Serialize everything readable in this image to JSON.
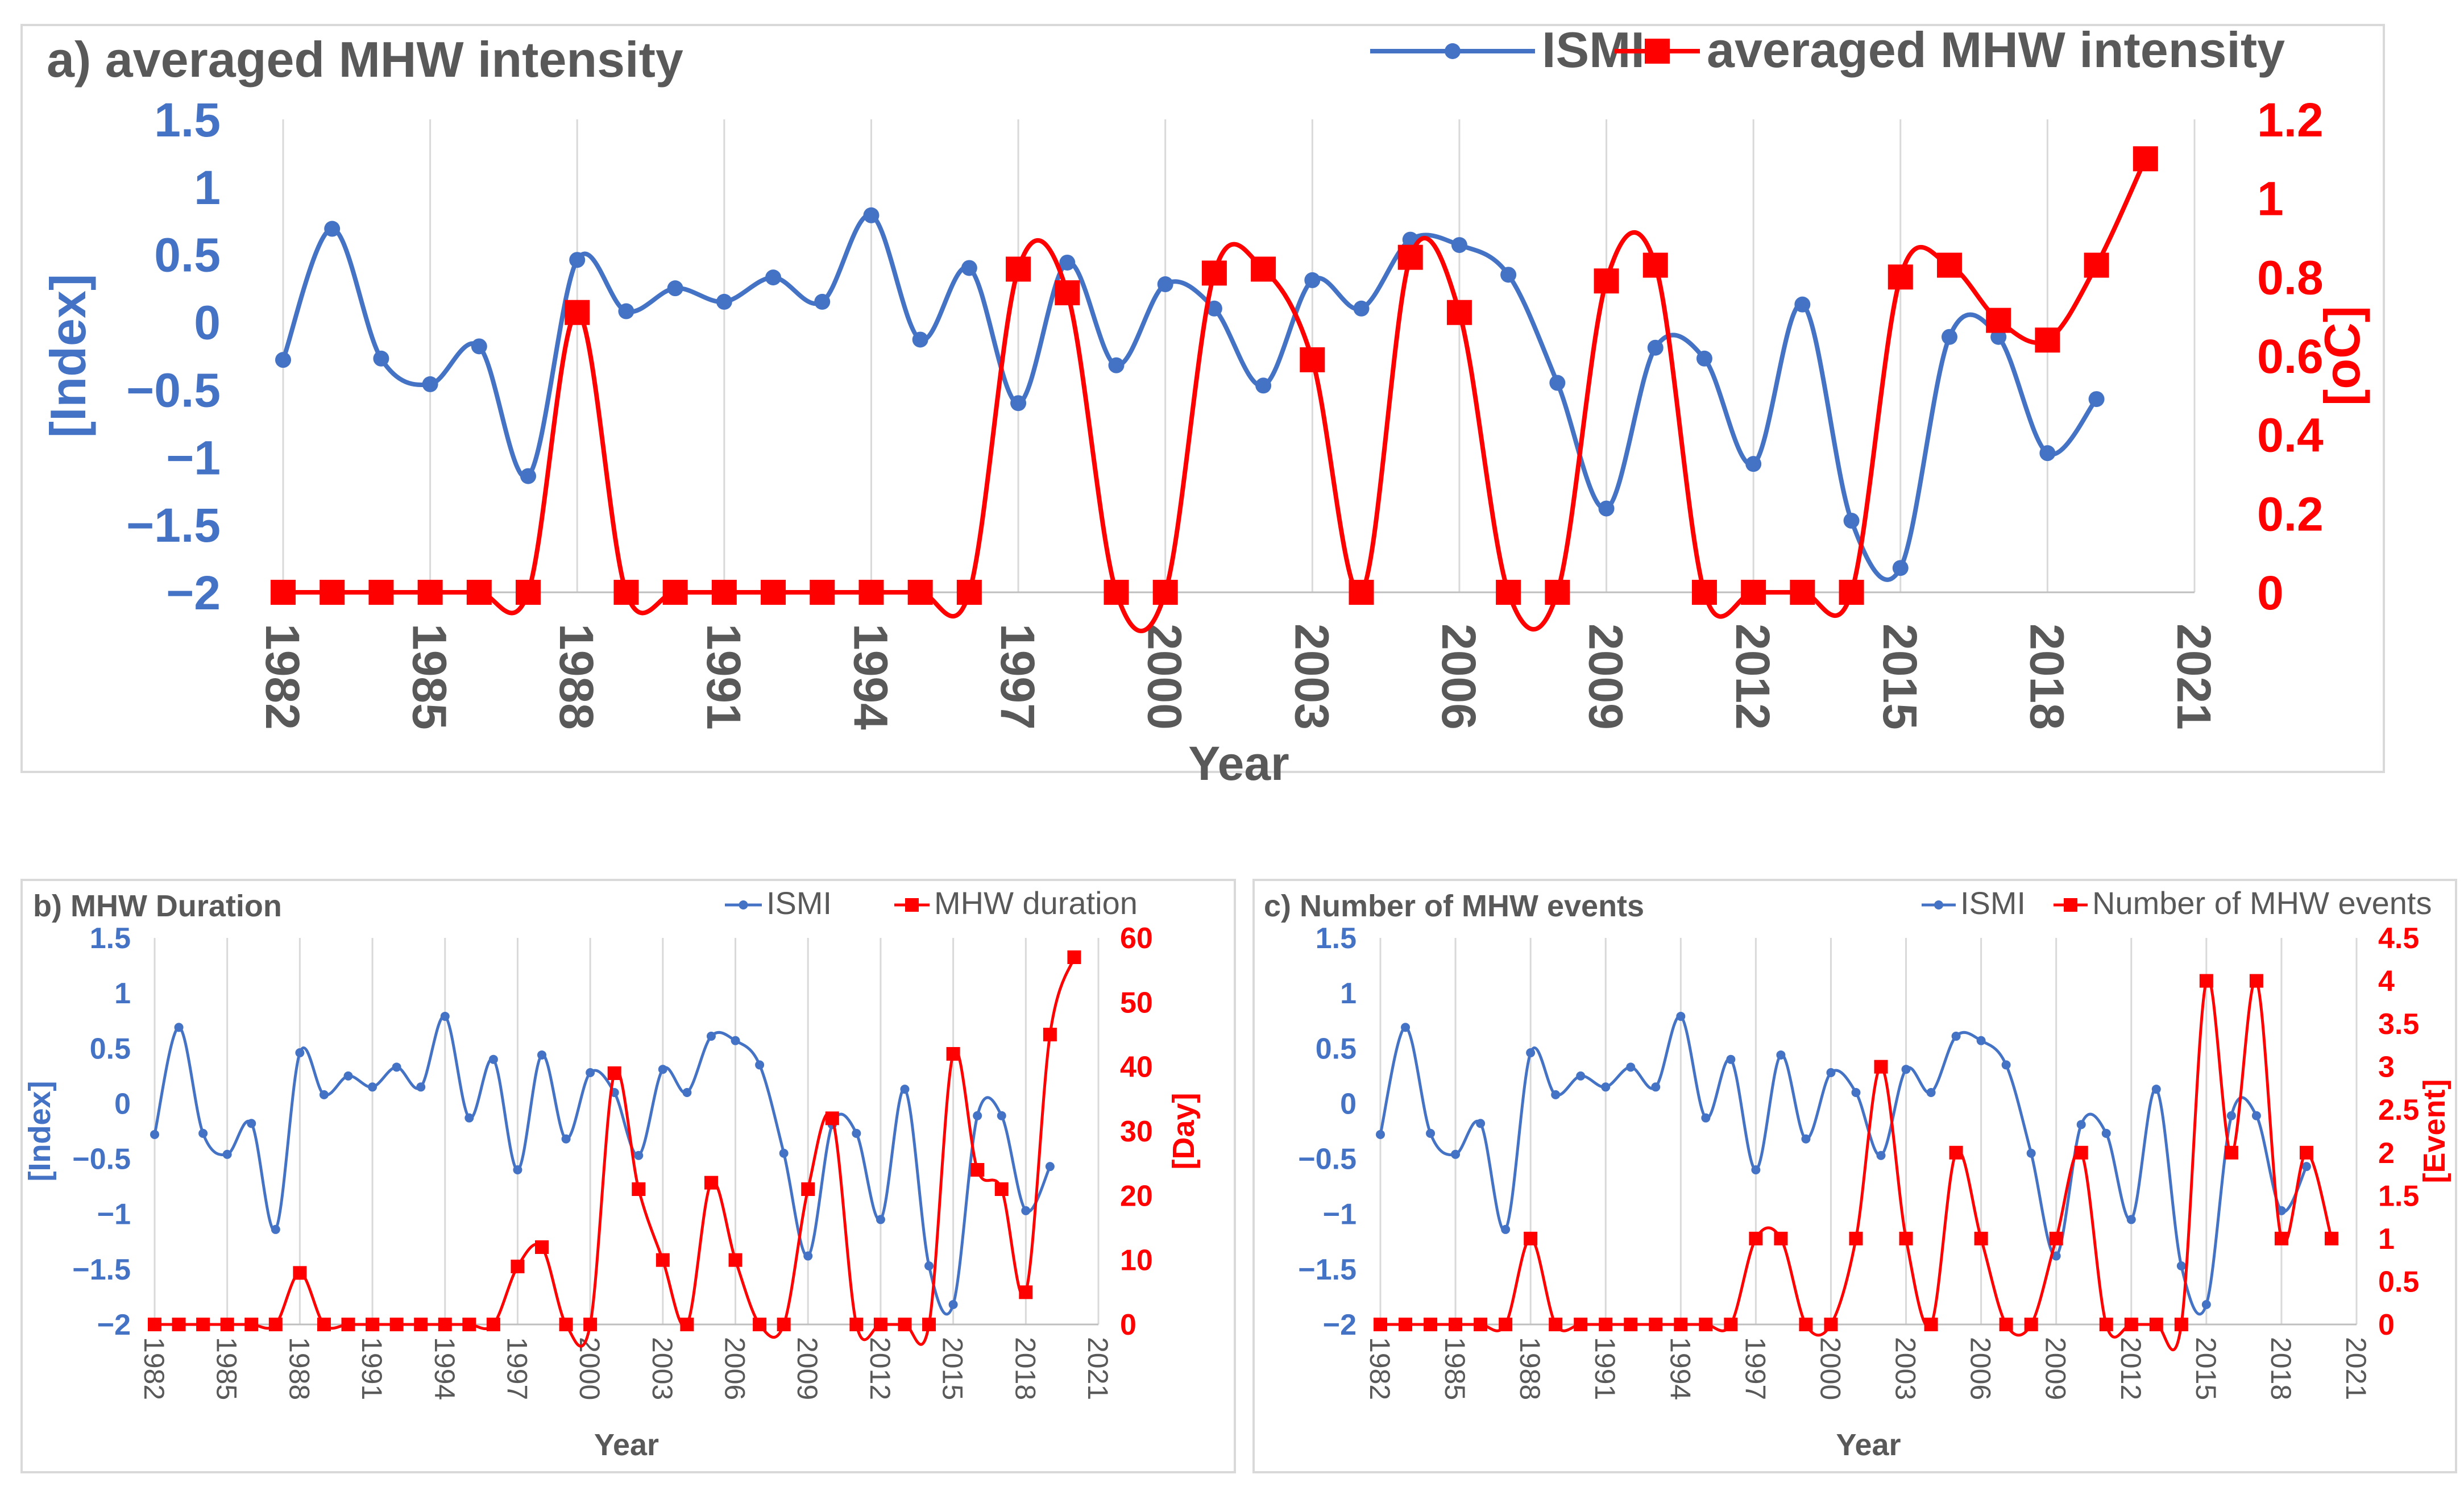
{
  "chart_data": [
    {
      "panel": "a",
      "type": "line",
      "title": "a) averaged MHW intensity",
      "xlabel": "Year",
      "ylabel_left": "[Index]",
      "ylabel_right": "[oC]",
      "x_ticks": [
        "1982",
        "1985",
        "1988",
        "1991",
        "1994",
        "1997",
        "2000",
        "2003",
        "2006",
        "2009",
        "2012",
        "2015",
        "2018",
        "2021"
      ],
      "xlim": [
        1982,
        2021
      ],
      "ylim_left": [
        -2,
        1.5
      ],
      "yticks_left": [
        "-2",
        "-1.5",
        "-1",
        "-0.5",
        "0",
        "0.5",
        "1",
        "1.5"
      ],
      "ylim_right": [
        0,
        1.2
      ],
      "yticks_right": [
        "0",
        "0.2",
        "0.4",
        "0.6",
        "0.8",
        "1",
        "1.2"
      ],
      "series": [
        {
          "name": "ISMI",
          "axis": "left",
          "color": "#4472c4",
          "x": [
            1982,
            1983,
            1984,
            1985,
            1986,
            1987,
            1988,
            1989,
            1990,
            1991,
            1992,
            1993,
            1994,
            1995,
            1996,
            1997,
            1998,
            1999,
            2000,
            2001,
            2002,
            2003,
            2004,
            2005,
            2006,
            2007,
            2008,
            2009,
            2010,
            2011,
            2012,
            2013,
            2014,
            2015,
            2016,
            2017,
            2018,
            2019
          ],
          "values": [
            -0.28,
            0.69,
            -0.27,
            -0.46,
            -0.18,
            -1.14,
            0.46,
            0.08,
            0.25,
            0.15,
            0.33,
            0.15,
            0.79,
            -0.13,
            0.4,
            -0.6,
            0.44,
            -0.32,
            0.28,
            0.1,
            -0.47,
            0.31,
            0.1,
            0.61,
            0.57,
            0.35,
            -0.45,
            -1.38,
            -0.19,
            -0.27,
            -1.05,
            0.13,
            -1.47,
            -1.82,
            -0.11,
            -0.11,
            -0.97,
            -0.57
          ]
        },
        {
          "name": "averaged MHW intensity",
          "axis": "right",
          "color": "#ff0000",
          "x": [
            1982,
            1983,
            1984,
            1985,
            1986,
            1987,
            1988,
            1989,
            1990,
            1991,
            1992,
            1993,
            1994,
            1995,
            1996,
            1997,
            1998,
            1999,
            2000,
            2001,
            2002,
            2003,
            2004,
            2005,
            2006,
            2007,
            2008,
            2009,
            2010,
            2011,
            2012,
            2013,
            2014,
            2015,
            2016,
            2017,
            2018,
            2019,
            2020
          ],
          "values": [
            0,
            0,
            0,
            0,
            0,
            0,
            0.71,
            0,
            0,
            0,
            0,
            0,
            0,
            0,
            0,
            0.82,
            0.76,
            0,
            0,
            0.81,
            0.82,
            0.59,
            0,
            0.85,
            0.71,
            0,
            0,
            0.79,
            0.83,
            0,
            0,
            0,
            0,
            0.8,
            0.83,
            0.69,
            0.64,
            0.83,
            1.1
          ]
        }
      ]
    },
    {
      "panel": "b",
      "type": "line",
      "title": "b) MHW Duration",
      "xlabel": "Year",
      "ylabel_left": "[Index]",
      "ylabel_right": "[Day]",
      "x_ticks": [
        "1982",
        "1985",
        "1988",
        "1991",
        "1994",
        "1997",
        "2000",
        "2003",
        "2006",
        "2009",
        "2012",
        "2015",
        "2018",
        "2021"
      ],
      "xlim": [
        1982,
        2021
      ],
      "ylim_left": [
        -2,
        1.5
      ],
      "yticks_left": [
        "-2",
        "-1.5",
        "-1",
        "-0.5",
        "0",
        "0.5",
        "1",
        "1.5"
      ],
      "ylim_right": [
        0,
        60
      ],
      "yticks_right": [
        "0",
        "10",
        "20",
        "30",
        "40",
        "50",
        "60"
      ],
      "series": [
        {
          "name": "ISMI",
          "axis": "left",
          "color": "#4472c4",
          "x": [
            1982,
            1983,
            1984,
            1985,
            1986,
            1987,
            1988,
            1989,
            1990,
            1991,
            1992,
            1993,
            1994,
            1995,
            1996,
            1997,
            1998,
            1999,
            2000,
            2001,
            2002,
            2003,
            2004,
            2005,
            2006,
            2007,
            2008,
            2009,
            2010,
            2011,
            2012,
            2013,
            2014,
            2015,
            2016,
            2017,
            2018,
            2019
          ],
          "values": [
            -0.28,
            0.69,
            -0.27,
            -0.46,
            -0.18,
            -1.14,
            0.46,
            0.08,
            0.25,
            0.15,
            0.33,
            0.15,
            0.79,
            -0.13,
            0.4,
            -0.6,
            0.44,
            -0.32,
            0.28,
            0.1,
            -0.47,
            0.31,
            0.1,
            0.61,
            0.57,
            0.35,
            -0.45,
            -1.38,
            -0.19,
            -0.27,
            -1.05,
            0.13,
            -1.47,
            -1.82,
            -0.11,
            -0.11,
            -0.97,
            -0.57
          ]
        },
        {
          "name": "MHW duration",
          "axis": "right",
          "color": "#ff0000",
          "x": [
            1982,
            1983,
            1984,
            1985,
            1986,
            1987,
            1988,
            1989,
            1990,
            1991,
            1992,
            1993,
            1994,
            1995,
            1996,
            1997,
            1998,
            1999,
            2000,
            2001,
            2002,
            2003,
            2004,
            2005,
            2006,
            2007,
            2008,
            2009,
            2010,
            2011,
            2012,
            2013,
            2014,
            2015,
            2016,
            2017,
            2018,
            2019,
            2020
          ],
          "values": [
            0,
            0,
            0,
            0,
            0,
            0,
            8,
            0,
            0,
            0,
            0,
            0,
            0,
            0,
            0,
            9,
            12,
            0,
            0,
            39,
            21,
            10,
            0,
            22,
            10,
            0,
            0,
            21,
            32,
            0,
            0,
            0,
            0,
            42,
            24,
            21,
            5,
            45,
            57
          ]
        }
      ]
    },
    {
      "panel": "c",
      "type": "line",
      "title": "c) Number of MHW events",
      "xlabel": "Year",
      "ylabel_left": "[Index]",
      "ylabel_right": "[Event]",
      "x_ticks": [
        "1982",
        "1985",
        "1988",
        "1991",
        "1994",
        "1997",
        "2000",
        "2003",
        "2006",
        "2009",
        "2012",
        "2015",
        "2018",
        "2021"
      ],
      "xlim": [
        1982,
        2021
      ],
      "ylim_left": [
        -2,
        1.5
      ],
      "yticks_left": [
        "-2",
        "-1.5",
        "-1",
        "-0.5",
        "0",
        "0.5",
        "1",
        "1.5"
      ],
      "ylim_right": [
        0,
        4.5
      ],
      "yticks_right": [
        "0",
        "0.5",
        "1",
        "1.5",
        "2",
        "2.5",
        "3",
        "3.5",
        "4",
        "4.5"
      ],
      "series": [
        {
          "name": "ISMI",
          "axis": "left",
          "color": "#4472c4",
          "x": [
            1982,
            1983,
            1984,
            1985,
            1986,
            1987,
            1988,
            1989,
            1990,
            1991,
            1992,
            1993,
            1994,
            1995,
            1996,
            1997,
            1998,
            1999,
            2000,
            2001,
            2002,
            2003,
            2004,
            2005,
            2006,
            2007,
            2008,
            2009,
            2010,
            2011,
            2012,
            2013,
            2014,
            2015,
            2016,
            2017,
            2018,
            2019
          ],
          "values": [
            -0.28,
            0.69,
            -0.27,
            -0.46,
            -0.18,
            -1.14,
            0.46,
            0.08,
            0.25,
            0.15,
            0.33,
            0.15,
            0.79,
            -0.13,
            0.4,
            -0.6,
            0.44,
            -0.32,
            0.28,
            0.1,
            -0.47,
            0.31,
            0.1,
            0.61,
            0.57,
            0.35,
            -0.45,
            -1.38,
            -0.19,
            -0.27,
            -1.05,
            0.13,
            -1.47,
            -1.82,
            -0.11,
            -0.11,
            -0.97,
            -0.57
          ]
        },
        {
          "name": "Number of MHW events",
          "axis": "right",
          "color": "#ff0000",
          "x": [
            1982,
            1983,
            1984,
            1985,
            1986,
            1987,
            1988,
            1989,
            1990,
            1991,
            1992,
            1993,
            1994,
            1995,
            1996,
            1997,
            1998,
            1999,
            2000,
            2001,
            2002,
            2003,
            2004,
            2005,
            2006,
            2007,
            2008,
            2009,
            2010,
            2011,
            2012,
            2013,
            2014,
            2015,
            2016,
            2017,
            2018,
            2019,
            2020
          ],
          "values": [
            0,
            0,
            0,
            0,
            0,
            0,
            1,
            0,
            0,
            0,
            0,
            0,
            0,
            0,
            0,
            1,
            1,
            0,
            0,
            1,
            3,
            1,
            0,
            2,
            1,
            0,
            0,
            1,
            2,
            0,
            0,
            0,
            0,
            4,
            2,
            4,
            1,
            2,
            1
          ]
        }
      ]
    }
  ]
}
